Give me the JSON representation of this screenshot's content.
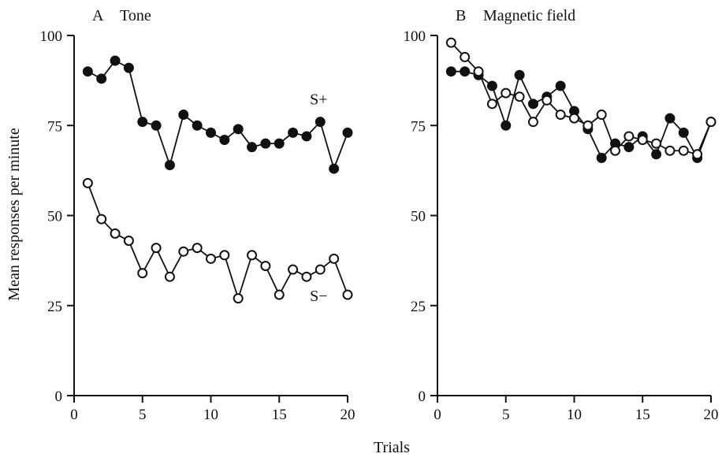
{
  "figure": {
    "y_axis_title": "Mean responses per minute",
    "x_axis_title": "Trials"
  },
  "chart_data": [
    {
      "type": "line",
      "panel_letter": "A",
      "title": "Tone",
      "xlabel": "Trials",
      "ylabel": "Mean responses per minute",
      "xlim": [
        0,
        20
      ],
      "ylim": [
        0,
        100
      ],
      "xticks": [
        0,
        5,
        10,
        15,
        20
      ],
      "yticks": [
        0,
        25,
        50,
        75,
        100
      ],
      "grid": false,
      "x": [
        1,
        2,
        3,
        4,
        5,
        6,
        7,
        8,
        9,
        10,
        11,
        12,
        13,
        14,
        15,
        16,
        17,
        18,
        19,
        20
      ],
      "series": [
        {
          "name": "S+",
          "marker": "filled-circle",
          "color": "#111111",
          "values": [
            90,
            88,
            93,
            91,
            76,
            75,
            64,
            78,
            75,
            73,
            71,
            74,
            69,
            70,
            70,
            73,
            72,
            76,
            63,
            73
          ]
        },
        {
          "name": "S−",
          "marker": "open-circle",
          "color": "#111111",
          "values": [
            59,
            49,
            45,
            43,
            34,
            41,
            33,
            40,
            41,
            38,
            39,
            27,
            39,
            36,
            28,
            35,
            33,
            35,
            38,
            28
          ]
        }
      ]
    },
    {
      "type": "line",
      "panel_letter": "B",
      "title": "Magnetic field",
      "xlabel": "Trials",
      "ylabel": "",
      "xlim": [
        0,
        20
      ],
      "ylim": [
        0,
        100
      ],
      "xticks": [
        0,
        5,
        10,
        15,
        20
      ],
      "yticks": [
        0,
        25,
        50,
        75,
        100
      ],
      "grid": false,
      "x": [
        1,
        2,
        3,
        4,
        5,
        6,
        7,
        8,
        9,
        10,
        11,
        12,
        13,
        14,
        15,
        16,
        17,
        18,
        19,
        20
      ],
      "series": [
        {
          "name": "",
          "marker": "filled-circle",
          "color": "#111111",
          "values": [
            90,
            90,
            89,
            86,
            75,
            89,
            81,
            83,
            86,
            79,
            74,
            66,
            70,
            69,
            72,
            67,
            77,
            73,
            66,
            76
          ]
        },
        {
          "name": "",
          "marker": "open-circle",
          "color": "#111111",
          "values": [
            98,
            94,
            90,
            81,
            84,
            83,
            76,
            82,
            78,
            77,
            75,
            78,
            68,
            72,
            71,
            70,
            68,
            68,
            67,
            76
          ]
        }
      ]
    }
  ]
}
